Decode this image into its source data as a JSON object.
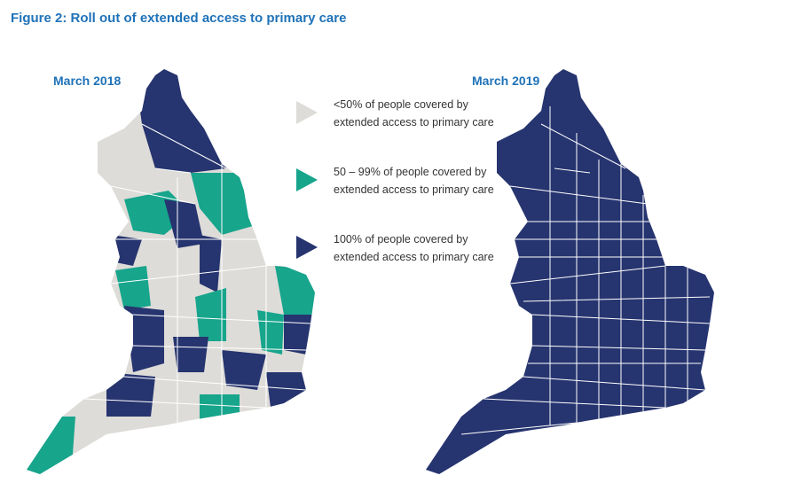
{
  "title": "Figure 2: Roll out of extended access to primary care",
  "maps": [
    {
      "title": "March 2018"
    },
    {
      "title": "March 2019"
    }
  ],
  "legend": [
    {
      "label": "<50% of people covered by extended access to primary care",
      "color": "#dedcd8"
    },
    {
      "label": "50 – 99% of people covered by extended access to primary care",
      "color": "#17a58c"
    },
    {
      "label": "100% of people covered by extended access to primary care",
      "color": "#26346f"
    }
  ]
}
